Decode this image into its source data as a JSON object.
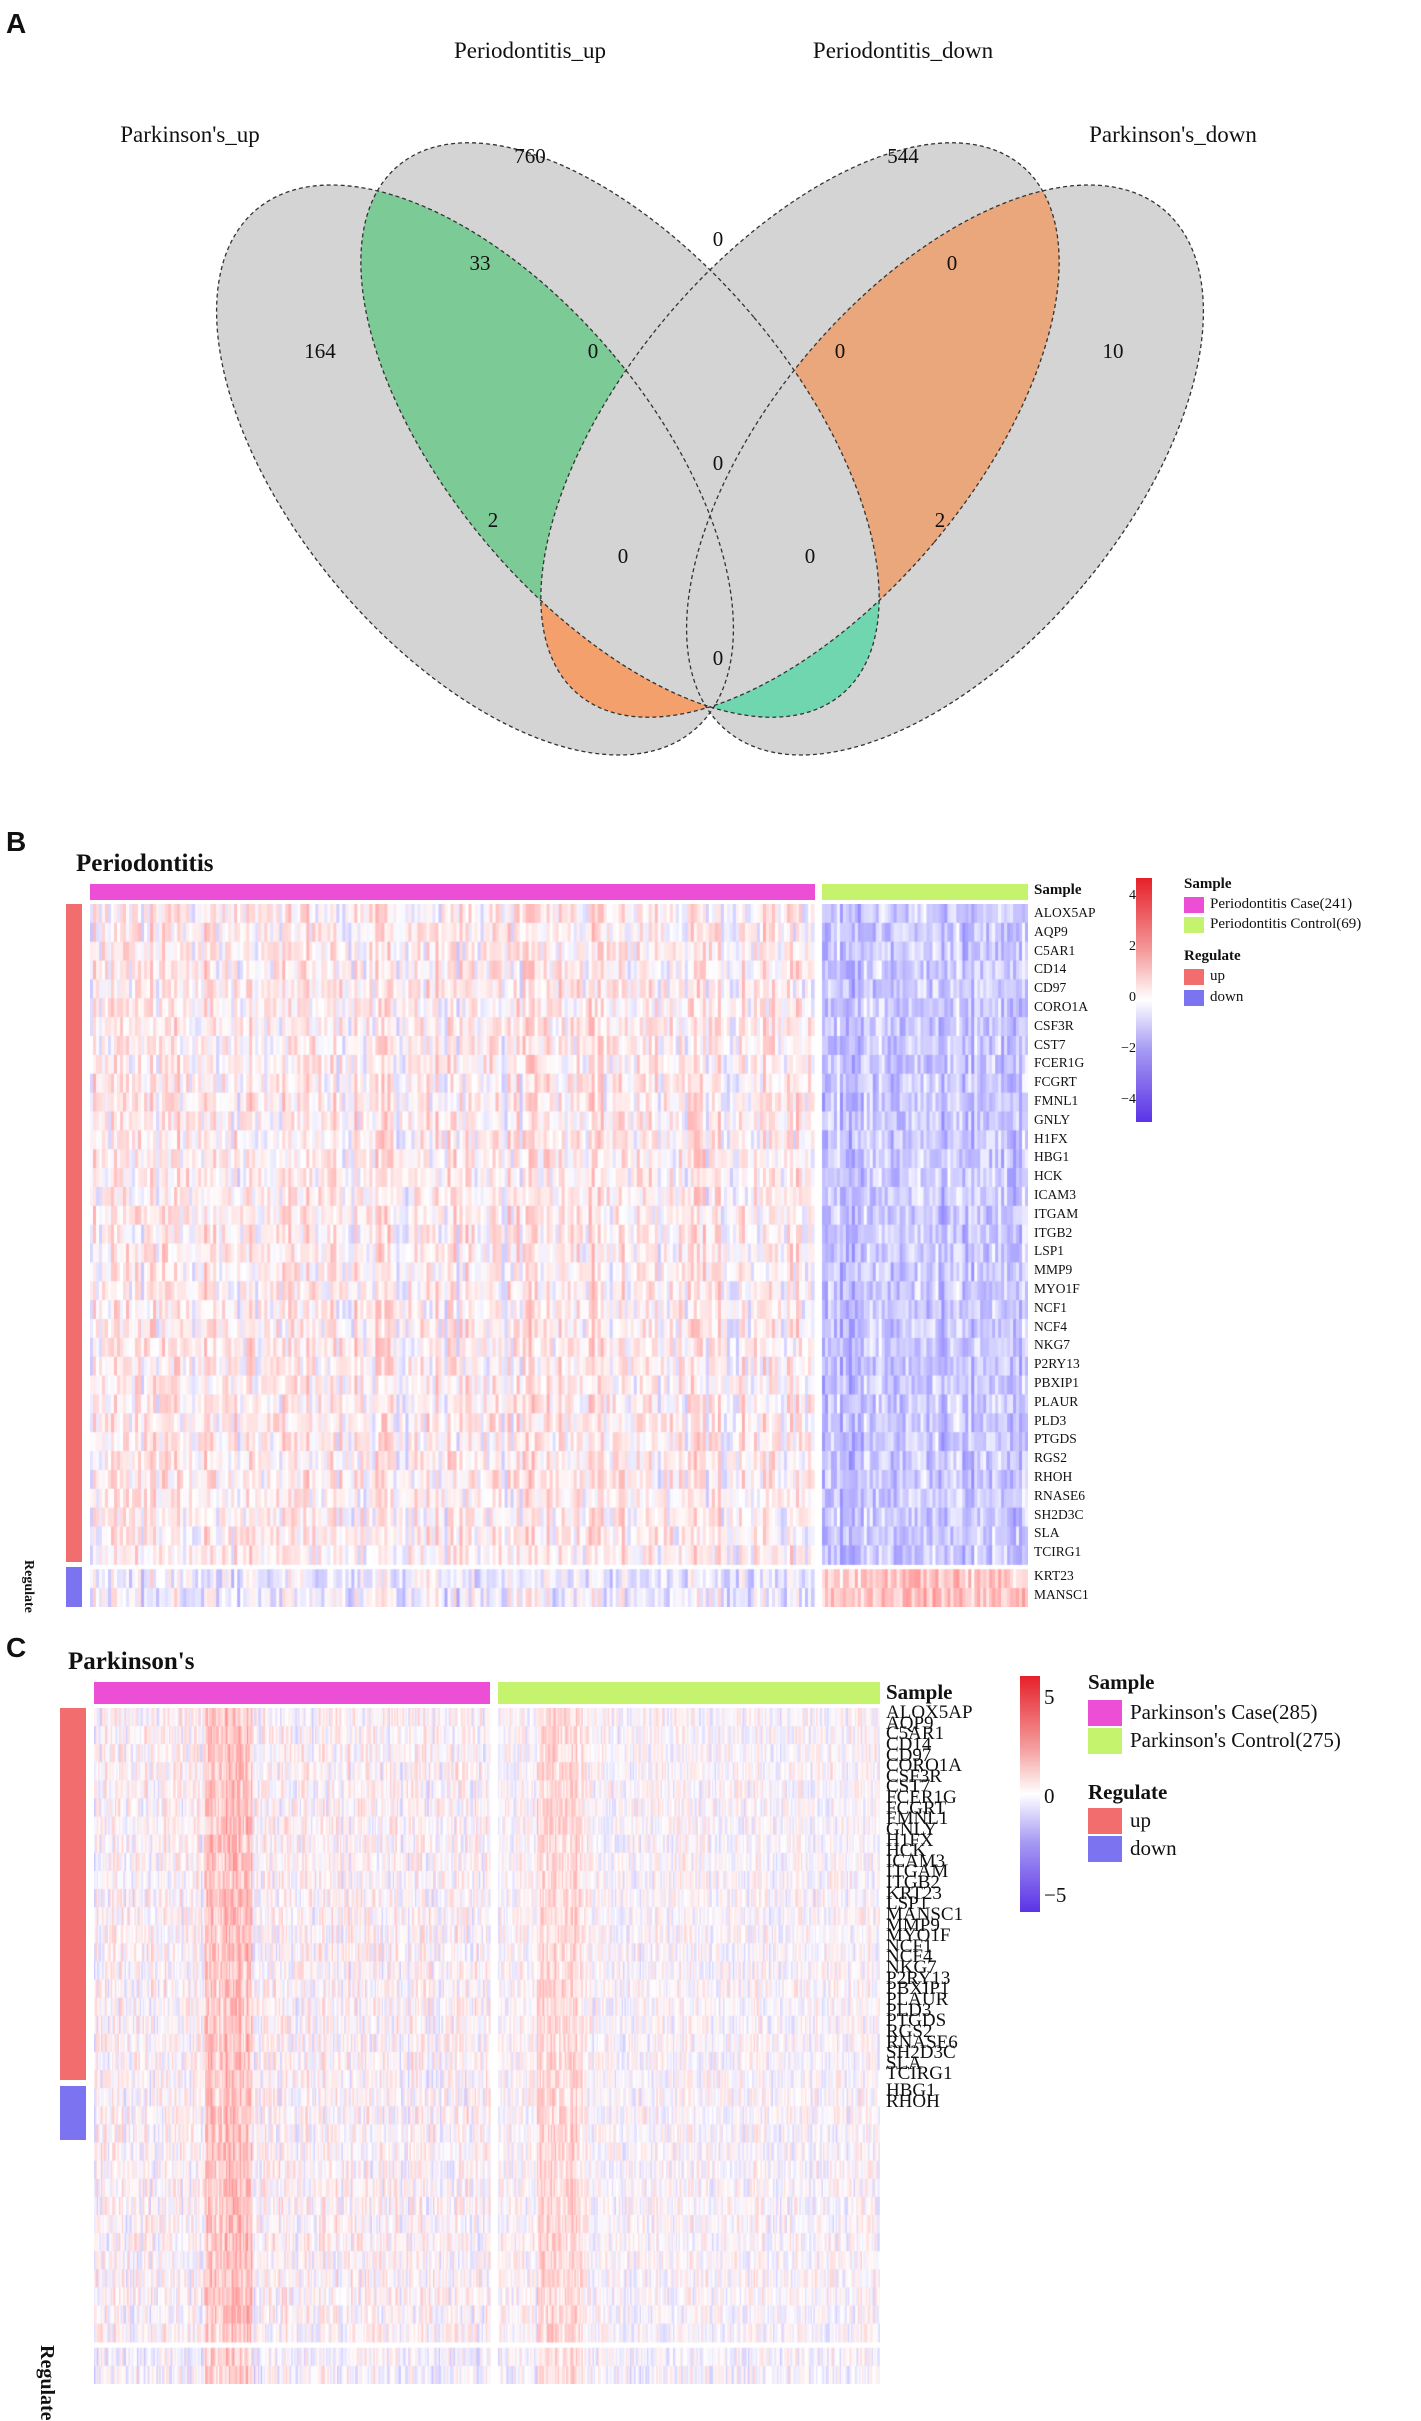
{
  "panels": {
    "a": "A",
    "b": "B",
    "c": "C"
  },
  "chart_data": [
    {
      "type": "venn",
      "panel": "A",
      "sets": [
        "Parkinson's_up",
        "Periodontitis_up",
        "Periodontitis_down",
        "Parkinson's_down"
      ],
      "regions": {
        "pk_up_only": 164,
        "pd_up_only": 760,
        "pd_down_only": 544,
        "pk_down_only": 10,
        "pk_up_pd_up": 33,
        "pd_up_pd_down": 0,
        "pd_down_pk_down": 0,
        "pk_up_pd_up_pd_down": 0,
        "pd_up_pd_down_pk_down": 0,
        "all_four": 0,
        "pk_up_pd_down": 2,
        "pd_up_pk_down": 2,
        "pk_up_pd_down_pk_down": 0,
        "pk_up_pd_up_pk_down": 0,
        "pk_up_pk_down": 0
      },
      "colors": {
        "set_fill": "#d4d4d4",
        "green": "#7ccb96",
        "orange": "#f3a06c",
        "orange_light": "#eaa77c",
        "teal": "#6fd6b0"
      }
    },
    {
      "type": "heatmap",
      "panel": "B",
      "title": "Periodontitis",
      "legend": {
        "sample_title": "Sample",
        "case_label": "Periodontitis Case(241)",
        "control_label": "Periodontitis Control(69)",
        "regulate_title": "Regulate",
        "up_label": "up",
        "down_label": "down",
        "scale_ticks": [
          "4",
          "2",
          "0",
          "−2",
          "−4"
        ],
        "scale_values": [
          4,
          2,
          0,
          -2,
          -4
        ]
      },
      "sample_header": "Sample",
      "regulate_axis_label": "Regulate",
      "genes_up": [
        "ALOX5AP",
        "AQP9",
        "C5AR1",
        "CD14",
        "CD97",
        "CORO1A",
        "CSF3R",
        "CST7",
        "FCER1G",
        "FCGRT",
        "FMNL1",
        "GNLY",
        "H1FX",
        "HBG1",
        "HCK",
        "ICAM3",
        "ITGAM",
        "ITGB2",
        "LSP1",
        "MMP9",
        "MYO1F",
        "NCF1",
        "NCF4",
        "NKG7",
        "P2RY13",
        "PBXIP1",
        "PLAUR",
        "PLD3",
        "PTGDS",
        "RGS2",
        "RHOH",
        "RNASE6",
        "SH2D3C",
        "SLA",
        "TCIRG1"
      ],
      "genes_down": [
        "KRT23",
        "MANSC1"
      ],
      "case_n": 241,
      "control_n": 69
    },
    {
      "type": "heatmap",
      "panel": "C",
      "title": "Parkinson's",
      "legend": {
        "sample_title": "Sample",
        "case_label": "Parkinson's Case(285)",
        "control_label": "Parkinson's Control(275)",
        "regulate_title": "Regulate",
        "up_label": "up",
        "down_label": "down",
        "scale_ticks": [
          "5",
          "0",
          "−5"
        ],
        "scale_values": [
          5,
          0,
          -5
        ]
      },
      "sample_header": "Sample",
      "regulate_axis_label": "Regulate",
      "genes_up": [
        "ALOX5AP",
        "AQP9",
        "C5AR1",
        "CD14",
        "CD97",
        "CORO1A",
        "CSF3R",
        "CST7",
        "FCER1G",
        "FCGRT",
        "FMNL1",
        "GNLY",
        "H1FX",
        "HCK",
        "ICAM3",
        "ITGAM",
        "ITGB2",
        "KRT23",
        "LSP1",
        "MANSC1",
        "MMP9",
        "MYO1F",
        "NCF1",
        "NCF4",
        "NKG7",
        "P2RY13",
        "PBXIP1",
        "PLAUR",
        "PLD3",
        "PTGDS",
        "RGS2",
        "RNASE6",
        "SH2D3C",
        "SLA",
        "TCIRG1"
      ],
      "genes_down": [
        "HBG1",
        "RHOH"
      ],
      "case_n": 285,
      "control_n": 275
    }
  ]
}
